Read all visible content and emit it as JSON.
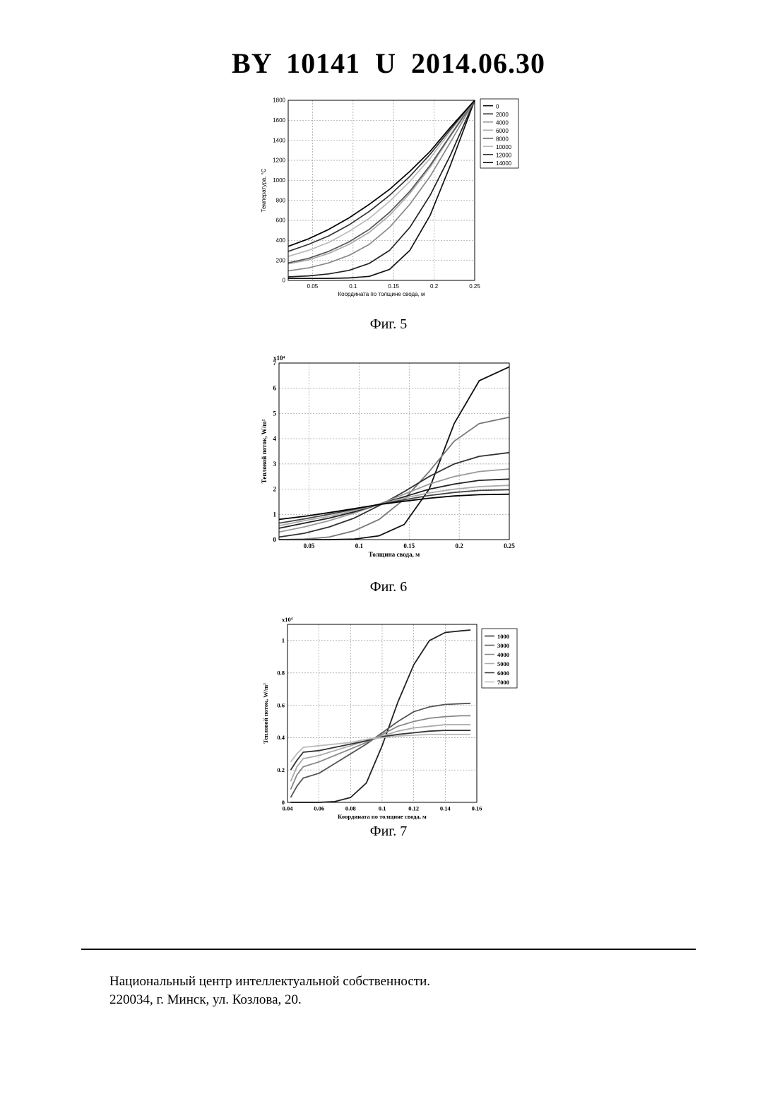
{
  "header": {
    "doc_number": "BY  10141  U  2014.06.30"
  },
  "captions": {
    "fig5": "Фиг. 5",
    "fig6": "Фиг. 6",
    "fig7": "Фиг. 7"
  },
  "footer": {
    "line1": "Национальный центр интеллектуальной собственности.",
    "line2": "220034, г. Минск, ул. Козлова, 20."
  },
  "chart_data": [
    {
      "type": "line",
      "xlabel": "Координата по толщине свода, м",
      "ylabel": "Температура, °C",
      "xlim": [
        0.02,
        0.25
      ],
      "ylim": [
        0,
        1800
      ],
      "xticks": [
        "0.05",
        "0.1",
        "0.15",
        "0.2",
        "0.25"
      ],
      "yticks": [
        "0",
        "200",
        "400",
        "600",
        "800",
        "1000",
        "1200",
        "1400",
        "1600",
        "1800"
      ],
      "grid": true,
      "legend_position": "outside-right-top",
      "x": [
        0.02,
        0.045,
        0.07,
        0.095,
        0.12,
        0.145,
        0.17,
        0.195,
        0.22,
        0.25
      ],
      "series": [
        {
          "name": "0",
          "color": "#111111",
          "values": [
            20,
            20,
            20,
            25,
            40,
            110,
            300,
            650,
            1150,
            1800
          ]
        },
        {
          "name": "2000",
          "color": "#222222",
          "values": [
            35,
            45,
            65,
            100,
            170,
            300,
            530,
            850,
            1250,
            1800
          ]
        },
        {
          "name": "4000",
          "color": "#888888",
          "values": [
            95,
            125,
            175,
            250,
            360,
            530,
            760,
            1040,
            1380,
            1800
          ]
        },
        {
          "name": "6000",
          "color": "#aaaaaa",
          "values": [
            165,
            205,
            270,
            360,
            480,
            650,
            870,
            1130,
            1440,
            1800
          ]
        },
        {
          "name": "8000",
          "color": "#555555",
          "values": [
            175,
            220,
            290,
            385,
            510,
            680,
            890,
            1150,
            1450,
            1800
          ]
        },
        {
          "name": "10000",
          "color": "#bbbbbb",
          "values": [
            240,
            300,
            380,
            490,
            620,
            790,
            990,
            1220,
            1490,
            1800
          ]
        },
        {
          "name": "12000",
          "color": "#333333",
          "values": [
            290,
            360,
            445,
            555,
            690,
            850,
            1040,
            1260,
            1510,
            1800
          ]
        },
        {
          "name": "14000",
          "color": "#000000",
          "values": [
            340,
            415,
            510,
            625,
            760,
            910,
            1090,
            1290,
            1530,
            1800
          ]
        }
      ]
    },
    {
      "type": "line",
      "xlabel": "Толщина свода, м",
      "ylabel": "Тепловой поток, W/m²",
      "multiplier": "x10⁴",
      "xlim": [
        0.02,
        0.25
      ],
      "ylim": [
        0,
        7
      ],
      "xticks": [
        "0.05",
        "0.1",
        "0.15",
        "0.2",
        "0.25"
      ],
      "yticks": [
        "0",
        "1",
        "2",
        "3",
        "4",
        "5",
        "6",
        "7"
      ],
      "grid": true,
      "x": [
        0.02,
        0.045,
        0.07,
        0.095,
        0.12,
        0.145,
        0.17,
        0.195,
        0.22,
        0.25
      ],
      "series": [
        {
          "color": "#111111",
          "values": [
            0,
            0,
            0,
            0.02,
            0.15,
            0.6,
            2.0,
            4.6,
            6.3,
            6.85
          ]
        },
        {
          "color": "#777777",
          "values": [
            0,
            0.02,
            0.1,
            0.35,
            0.8,
            1.6,
            2.7,
            3.9,
            4.6,
            4.85
          ]
        },
        {
          "color": "#333333",
          "values": [
            0.1,
            0.25,
            0.5,
            0.85,
            1.35,
            1.9,
            2.5,
            3.0,
            3.3,
            3.45
          ]
        },
        {
          "color": "#999999",
          "values": [
            0.3,
            0.5,
            0.75,
            1.05,
            1.4,
            1.8,
            2.2,
            2.5,
            2.7,
            2.8
          ]
        },
        {
          "color": "#222222",
          "values": [
            0.45,
            0.65,
            0.85,
            1.1,
            1.4,
            1.7,
            2.0,
            2.2,
            2.35,
            2.4
          ]
        },
        {
          "color": "#aaaaaa",
          "values": [
            0.55,
            0.75,
            0.92,
            1.15,
            1.4,
            1.65,
            1.85,
            2.0,
            2.1,
            2.15
          ]
        },
        {
          "color": "#444444",
          "values": [
            0.65,
            0.82,
            1.0,
            1.2,
            1.4,
            1.58,
            1.75,
            1.87,
            1.95,
            1.98
          ]
        },
        {
          "color": "#000000",
          "values": [
            0.8,
            0.92,
            1.07,
            1.23,
            1.39,
            1.52,
            1.64,
            1.73,
            1.78,
            1.8
          ]
        }
      ]
    },
    {
      "type": "line",
      "xlabel": "Координата по толщине свода, м",
      "ylabel": "Тепловой поток, W/m²",
      "multiplier": "x10⁴",
      "xlim": [
        0.04,
        0.16
      ],
      "ylim": [
        0,
        1.1
      ],
      "xticks": [
        "0.04",
        "0.06",
        "0.08",
        "0.1",
        "0.12",
        "0.14",
        "0.16"
      ],
      "yticks": [
        "0",
        "0.2",
        "0.4",
        "0.6",
        "0.8",
        "1"
      ],
      "grid": true,
      "legend_position": "top-right",
      "x": [
        0.042,
        0.046,
        0.05,
        0.06,
        0.07,
        0.08,
        0.09,
        0.1,
        0.11,
        0.12,
        0.13,
        0.14,
        0.15,
        0.156
      ],
      "series": [
        {
          "name": "1000",
          "color": "#222222",
          "values": [
            0,
            0,
            0,
            0,
            0.005,
            0.03,
            0.12,
            0.35,
            0.62,
            0.85,
            1.0,
            1.05,
            1.06,
            1.065
          ]
        },
        {
          "name": "3000",
          "color": "#555555",
          "values": [
            0.03,
            0.1,
            0.15,
            0.18,
            0.24,
            0.3,
            0.36,
            0.43,
            0.5,
            0.56,
            0.59,
            0.605,
            0.61,
            0.612
          ]
        },
        {
          "name": "4000",
          "color": "#888888",
          "values": [
            0.08,
            0.17,
            0.22,
            0.25,
            0.29,
            0.33,
            0.37,
            0.42,
            0.47,
            0.5,
            0.52,
            0.53,
            0.535,
            0.535
          ]
        },
        {
          "name": "5000",
          "color": "#aaaaaa",
          "values": [
            0.13,
            0.22,
            0.27,
            0.29,
            0.32,
            0.35,
            0.38,
            0.41,
            0.44,
            0.46,
            0.47,
            0.48,
            0.48,
            0.48
          ]
        },
        {
          "name": "6000",
          "color": "#333333",
          "values": [
            0.2,
            0.26,
            0.31,
            0.32,
            0.34,
            0.36,
            0.38,
            0.405,
            0.42,
            0.43,
            0.44,
            0.445,
            0.445,
            0.445
          ]
        },
        {
          "name": "7000",
          "color": "#bbbbbb",
          "values": [
            0.25,
            0.3,
            0.34,
            0.35,
            0.36,
            0.37,
            0.39,
            0.4,
            0.41,
            0.415,
            0.42,
            0.42,
            0.42,
            0.42
          ]
        }
      ]
    }
  ]
}
